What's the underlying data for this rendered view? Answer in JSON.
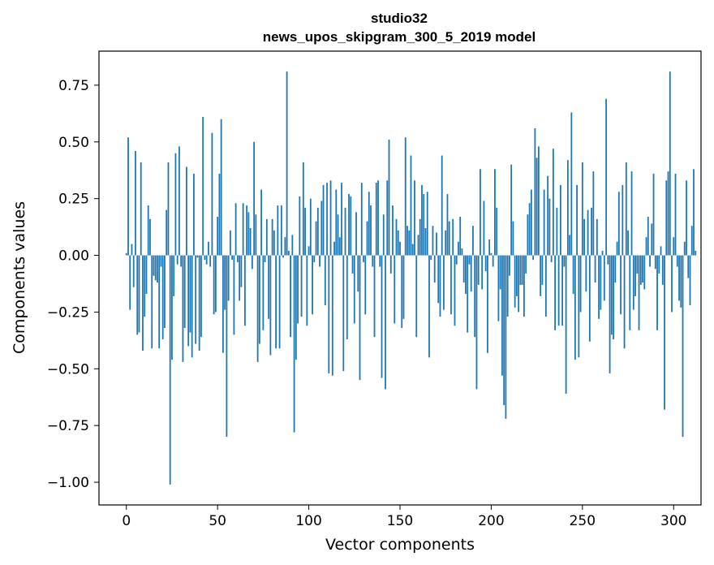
{
  "chart_data": {
    "type": "bar",
    "title": "studio32",
    "subtitle": "news_upos_skipgram_300_5_2019 model",
    "xlabel": "Vector components",
    "ylabel": "Components values",
    "xlim": [
      -15,
      315
    ],
    "ylim": [
      -1.1,
      0.9
    ],
    "x_ticks": [
      0,
      50,
      100,
      150,
      200,
      250,
      300
    ],
    "y_ticks": [
      0.75,
      0.5,
      0.25,
      0.0,
      -0.25,
      -0.5,
      -0.75,
      -1.0
    ],
    "x_tick_labels": [
      "0",
      "50",
      "100",
      "150",
      "200",
      "250",
      "300"
    ],
    "y_tick_labels": [
      "0.75",
      "0.50",
      "0.25",
      "0.00",
      "−0.25",
      "−0.50",
      "−0.75",
      "−1.00"
    ],
    "bar_color": "#1f77b4",
    "values": [
      0.01,
      0.52,
      -0.24,
      0.05,
      -0.14,
      0.46,
      -0.35,
      -0.34,
      0.41,
      -0.42,
      -0.27,
      -0.17,
      0.22,
      0.16,
      -0.41,
      -0.09,
      -0.11,
      -0.12,
      -0.41,
      -0.05,
      -0.37,
      -0.32,
      0.2,
      0.41,
      -1.01,
      -0.46,
      -0.18,
      0.45,
      -0.04,
      0.48,
      -0.05,
      -0.47,
      -0.32,
      0.39,
      -0.4,
      -0.34,
      -0.45,
      0.36,
      -0.39,
      -0.01,
      -0.42,
      -0.36,
      0.61,
      -0.02,
      -0.04,
      0.06,
      -0.05,
      0.54,
      -0.26,
      -0.25,
      0.17,
      0.36,
      0.6,
      -0.43,
      -0.24,
      -0.8,
      -0.2,
      0.11,
      -0.02,
      -0.35,
      0.23,
      -0.03,
      -0.2,
      -0.14,
      0.23,
      -0.31,
      0.22,
      0.19,
      0.12,
      -0.06,
      0.5,
      0.18,
      -0.47,
      -0.39,
      0.29,
      -0.33,
      -0.03,
      0.16,
      -0.28,
      -0.44,
      0.16,
      0.11,
      -0.41,
      0.22,
      -0.41,
      0.22,
      -0.01,
      0.08,
      0.81,
      0.02,
      -0.36,
      0.09,
      -0.78,
      -0.46,
      -0.3,
      0.26,
      -0.27,
      0.41,
      0.21,
      -0.31,
      0.04,
      0.25,
      -0.26,
      -0.03,
      0.15,
      0.21,
      -0.05,
      0.24,
      0.31,
      -0.22,
      0.32,
      -0.52,
      0.33,
      -0.53,
      0.06,
      0.29,
      0.18,
      0.08,
      0.32,
      -0.51,
      0.21,
      -0.37,
      0.27,
      0.26,
      -0.08,
      -0.3,
      0.19,
      -0.16,
      -0.55,
      0.32,
      -0.03,
      -0.26,
      0.15,
      0.28,
      0.22,
      -0.05,
      -0.36,
      0.32,
      0.33,
      -0.05,
      -0.54,
      0.18,
      -0.59,
      0.33,
      0.51,
      -0.08,
      0.22,
      -0.3,
      0.16,
      0.11,
      0.06,
      -0.32,
      -0.28,
      0.52,
      0.13,
      0.11,
      0.44,
      0.05,
      0.33,
      -0.36,
      0.09,
      0.16,
      0.31,
      0.27,
      0.12,
      0.28,
      -0.45,
      -0.02,
      0.13,
      -0.12,
      0.1,
      -0.21,
      -0.27,
      0.44,
      -0.24,
      0.11,
      0.27,
      0.15,
      -0.26,
      0.16,
      -0.31,
      -0.04,
      0.06,
      0.17,
      0.03,
      -0.12,
      -0.17,
      -0.34,
      -0.04,
      -0.16,
      0.13,
      -0.36,
      -0.59,
      -0.13,
      0.38,
      -0.15,
      0.24,
      -0.07,
      -0.43,
      0.07,
      0.01,
      -0.05,
      0.38,
      0.21,
      -0.29,
      -0.15,
      -0.53,
      -0.66,
      -0.72,
      -0.27,
      -0.09,
      0.4,
      0.15,
      -0.23,
      -0.18,
      -0.25,
      -0.13,
      -0.13,
      -0.27,
      -0.08,
      0.18,
      0.23,
      0.29,
      -0.02,
      0.56,
      0.43,
      0.48,
      -0.18,
      -0.13,
      0.29,
      -0.27,
      0.35,
      0.25,
      -0.03,
      0.47,
      -0.33,
      0.21,
      -0.31,
      0.31,
      -0.31,
      -0.05,
      -0.61,
      0.42,
      0.09,
      0.63,
      -0.17,
      -0.46,
      0.31,
      -0.45,
      -0.25,
      0.41,
      0.16,
      -0.16,
      0.2,
      -0.38,
      0.21,
      0.37,
      -0.12,
      0.16,
      -0.28,
      -0.24,
      0.02,
      -0.2,
      0.69,
      -0.04,
      -0.52,
      -0.35,
      -0.37,
      -0.12,
      0.06,
      0.28,
      -0.26,
      0.31,
      -0.41,
      0.41,
      0.11,
      -0.33,
      0.37,
      -0.24,
      -0.18,
      -0.08,
      -0.33,
      -0.13,
      -0.12,
      -0.15,
      0.08,
      0.17,
      -0.05,
      0.14,
      0.36,
      -0.06,
      -0.33,
      -0.08,
      0.04,
      -0.13,
      -0.68,
      0.33,
      0.37,
      0.81,
      -0.25,
      0.08,
      0.36,
      -0.05,
      -0.2,
      -0.23,
      -0.8,
      0.06,
      0.33,
      -0.1,
      -0.22,
      0.13,
      0.38,
      0.02
    ]
  }
}
